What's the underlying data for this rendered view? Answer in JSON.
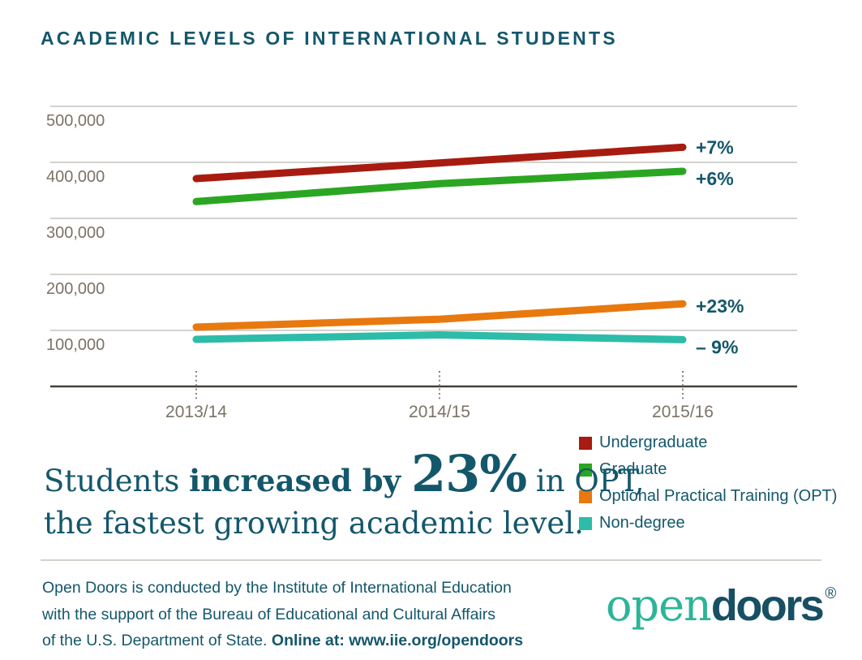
{
  "header": {
    "title": "ACADEMIC LEVELS OF INTERNATIONAL STUDENTS"
  },
  "chart_data": {
    "type": "line",
    "title": "ACADEMIC LEVELS OF INTERNATIONAL STUDENTS",
    "xlabel": "",
    "ylabel": "",
    "categories": [
      "2013/14",
      "2014/15",
      "2015/16"
    ],
    "series": [
      {
        "name": "Undergraduate",
        "color": "#a81b10",
        "values": [
          371000,
          399000,
          427000
        ],
        "end_label": "+7%"
      },
      {
        "name": "Graduate",
        "color": "#2ba622",
        "values": [
          330000,
          362000,
          384000
        ],
        "end_label": "+6%"
      },
      {
        "name": "Optional Practical Training (OPT)",
        "color": "#e8790e",
        "values": [
          106000,
          120000,
          147500
        ],
        "end_label": "+23%"
      },
      {
        "name": "Non-degree",
        "color": "#2dbca8",
        "values": [
          84000,
          92000,
          83500
        ],
        "end_label": "– 9%"
      }
    ],
    "yticks": [
      {
        "value": 500000,
        "label": "500,000"
      },
      {
        "value": 400000,
        "label": "400,000"
      },
      {
        "value": 300000,
        "label": "300,000"
      },
      {
        "value": 200000,
        "label": "200,000"
      },
      {
        "value": 100000,
        "label": "100,000"
      }
    ],
    "ylim": [
      0,
      520000
    ],
    "grid": "horizontal-only",
    "x_tick_style": "dotted-vertical",
    "legend_position": "below-chart-right",
    "values_note": "estimated from gridlines"
  },
  "statement": {
    "part1": "Students ",
    "part2": "increased by ",
    "part3": "23%",
    "part4": " in OPT,",
    "line2": "the fastest growing academic level."
  },
  "footer": {
    "line1": "Open Doors is conducted by the Institute of International Education",
    "line2": "with the support of the Bureau of Educational and Cultural Affairs",
    "line3_regular": "of the U.S. Department of State. ",
    "line3_bold": "Online at: www.iie.org/opendoors"
  },
  "logo": {
    "part1": "open",
    "part2": "doors",
    "registered": "®"
  },
  "colors": {
    "accent": "#14576b",
    "logo_teal": "#2db498",
    "logo_dark": "#174f63",
    "axis_text": "#7b7365",
    "gridline": "#c6c4be",
    "axis_line": "#45403a",
    "tick_dots": "#8a8274",
    "divider": "#d4d2cd",
    "background": "#ffffff"
  }
}
